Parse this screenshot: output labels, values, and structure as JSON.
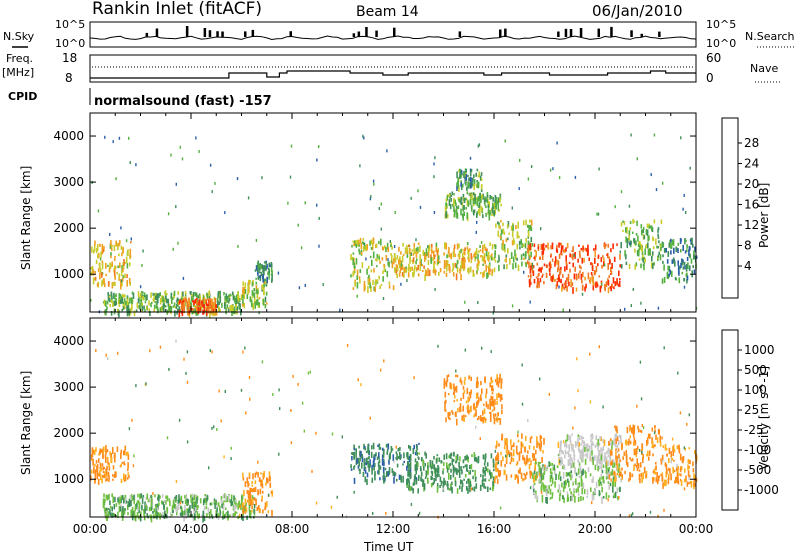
{
  "header": {
    "title": "Rankin Inlet (fitACF)",
    "beam": "Beam 14",
    "date": "06/Jan/2010"
  },
  "top_panel": {
    "left_label": "N.Sky",
    "right_label": "N.Search",
    "left_ticks": [
      "10^5",
      "10^0"
    ],
    "right_ticks": [
      "10^5",
      "10^0"
    ]
  },
  "freq_panel": {
    "left_label_1": "Freq.",
    "left_label_2": "[MHz]",
    "left_ticks": [
      "18",
      "8"
    ],
    "right_ticks": [
      "60",
      "0"
    ],
    "right_label": "Nave"
  },
  "cpid": {
    "label": "CPID",
    "value": "normalsound (fast) -157"
  },
  "colors": {
    "power_scale": [
      "#1a1aff",
      "#2a5fa8",
      "#3f8f5a",
      "#55b040",
      "#c9cc2a",
      "#f0a020",
      "#f07820",
      "#ff2a00"
    ],
    "velocity_scale": [
      "#ff0000",
      "#ff5a00",
      "#ff8c1a",
      "#ffb020",
      "#c8c8c8",
      "#70c040",
      "#3f8f5a",
      "#2a5fa8",
      "#1a3fb0"
    ]
  },
  "chart_data": [
    {
      "type": "heatmap",
      "name": "Power",
      "xlabel": "Time UT",
      "ylabel": "Slant Range [km]",
      "x_ticks": [
        "00:00",
        "04:00",
        "08:00",
        "12:00",
        "16:00",
        "20:00",
        "00:00"
      ],
      "y_ticks": [
        "1000",
        "2000",
        "3000",
        "4000"
      ],
      "xlim_hours": [
        0,
        24
      ],
      "ylim_km": [
        180,
        4500
      ],
      "colorbar_label": "Power [dB]",
      "colorbar_ticks": [
        "28",
        "24",
        "20",
        "16",
        "12",
        "8",
        "4"
      ],
      "colorbar_range_db": [
        0,
        32
      ],
      "echo_regions": [
        {
          "t0": 0.0,
          "t1": 1.6,
          "r0": 800,
          "r1": 1750,
          "v": 20
        },
        {
          "t0": 0.5,
          "t1": 6.0,
          "r0": 200,
          "r1": 650,
          "v": 14
        },
        {
          "t0": 3.5,
          "t1": 5.0,
          "r0": 200,
          "r1": 500,
          "v": 26
        },
        {
          "t0": 6.0,
          "t1": 7.0,
          "r0": 300,
          "r1": 900,
          "v": 16
        },
        {
          "t0": 6.5,
          "t1": 7.2,
          "r0": 900,
          "r1": 1300,
          "v": 10
        },
        {
          "t0": 10.3,
          "t1": 12.0,
          "r0": 700,
          "r1": 1800,
          "v": 18
        },
        {
          "t0": 12.0,
          "t1": 16.0,
          "r0": 1000,
          "r1": 1700,
          "v": 20
        },
        {
          "t0": 14.0,
          "t1": 16.3,
          "r0": 2300,
          "r1": 2800,
          "v": 14
        },
        {
          "t0": 14.5,
          "t1": 15.5,
          "r0": 2900,
          "r1": 3300,
          "v": 12
        },
        {
          "t0": 16.0,
          "t1": 17.5,
          "r0": 1200,
          "r1": 2200,
          "v": 16
        },
        {
          "t0": 17.3,
          "t1": 21.0,
          "r0": 700,
          "r1": 1700,
          "v": 28
        },
        {
          "t0": 21.0,
          "t1": 22.6,
          "r0": 1200,
          "r1": 2200,
          "v": 14
        },
        {
          "t0": 22.6,
          "t1": 24.0,
          "r0": 900,
          "r1": 1800,
          "v": 10
        }
      ]
    },
    {
      "type": "heatmap",
      "name": "Velocity",
      "xlabel": "Time UT",
      "ylabel": "Slant Range [km]",
      "x_ticks": [
        "00:00",
        "04:00",
        "08:00",
        "12:00",
        "16:00",
        "20:00",
        "00:00"
      ],
      "y_ticks": [
        "1000",
        "2000",
        "3000",
        "4000"
      ],
      "xlim_hours": [
        0,
        24
      ],
      "ylim_km": [
        180,
        4500
      ],
      "colorbar_label": "Velocity [m s^-1]",
      "colorbar_ticks": [
        "1000",
        "500",
        "100",
        "25",
        "-25",
        "-100",
        "-500",
        "-1000"
      ],
      "echo_regions": [
        {
          "t0": 0.0,
          "t1": 1.5,
          "r0": 1000,
          "r1": 1750,
          "v": -150
        },
        {
          "t0": 0.5,
          "t1": 6.5,
          "r0": 200,
          "r1": 700,
          "v": 80
        },
        {
          "t0": 6.0,
          "t1": 7.2,
          "r0": 300,
          "r1": 1200,
          "v": -150
        },
        {
          "t0": 10.3,
          "t1": 13.0,
          "r0": 1000,
          "r1": 1800,
          "v": 400
        },
        {
          "t0": 12.5,
          "t1": 16.0,
          "r0": 800,
          "r1": 1600,
          "v": 200
        },
        {
          "t0": 14.0,
          "t1": 16.3,
          "r0": 2300,
          "r1": 3300,
          "v": -200
        },
        {
          "t0": 16.0,
          "t1": 18.0,
          "r0": 1000,
          "r1": 2000,
          "v": -150
        },
        {
          "t0": 17.5,
          "t1": 21.0,
          "r0": 600,
          "r1": 1400,
          "v": 60
        },
        {
          "t0": 18.5,
          "t1": 21.0,
          "r0": 1400,
          "r1": 2000,
          "v": 0
        },
        {
          "t0": 20.5,
          "t1": 22.6,
          "r0": 1000,
          "r1": 2200,
          "v": -200
        },
        {
          "t0": 22.6,
          "t1": 24.0,
          "r0": 900,
          "r1": 1800,
          "v": -120
        }
      ]
    }
  ]
}
